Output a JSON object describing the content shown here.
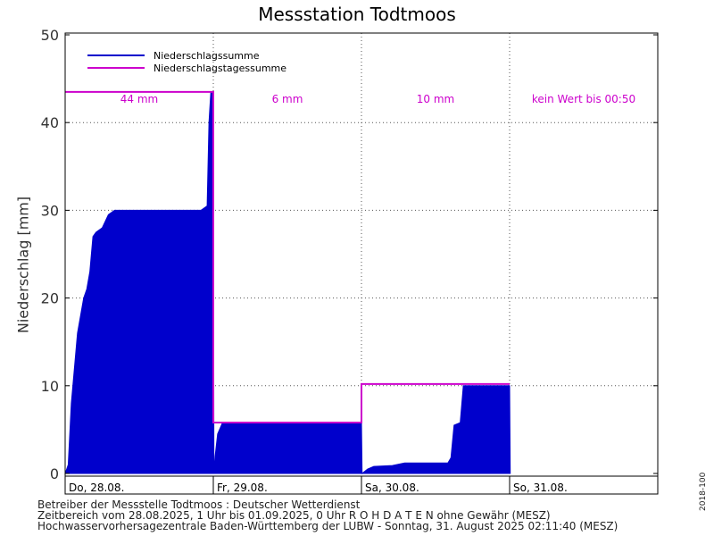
{
  "chart_data": {
    "type": "area",
    "title": "Messstation Todtmoos",
    "ylabel": "Niederschlag [mm]",
    "ylim": [
      0,
      50
    ],
    "yticks": [
      0,
      10,
      20,
      30,
      40,
      50
    ],
    "xlim": [
      0,
      96
    ],
    "x_unit": "hours since 28.08.2025 01:00",
    "grid": true,
    "legend_position": "top-left",
    "day_labels": [
      {
        "x": 0,
        "label": "Do, 28.08."
      },
      {
        "x": 24,
        "label": "Fr, 29.08."
      },
      {
        "x": 48,
        "label": "Sa, 30.08."
      },
      {
        "x": 72,
        "label": "So, 31.08."
      }
    ],
    "series": [
      {
        "name": "Niederschlagssumme",
        "color": "#0000cc",
        "points": [
          [
            0,
            0
          ],
          [
            0.5,
            1
          ],
          [
            1,
            8
          ],
          [
            1.5,
            12
          ],
          [
            2,
            16
          ],
          [
            2.5,
            18
          ],
          [
            3,
            20
          ],
          [
            3.5,
            21
          ],
          [
            4,
            23
          ],
          [
            4.5,
            27
          ],
          [
            5,
            27.5
          ],
          [
            6,
            28
          ],
          [
            7,
            29.5
          ],
          [
            8,
            30
          ],
          [
            10,
            30
          ],
          [
            15,
            30
          ],
          [
            22,
            30
          ],
          [
            23,
            30.5
          ],
          [
            23.3,
            40
          ],
          [
            23.6,
            43.5
          ],
          [
            24,
            43.5
          ],
          [
            24.1,
            0
          ],
          [
            24.3,
            2
          ],
          [
            24.7,
            4.5
          ],
          [
            25.5,
            5.8
          ],
          [
            30,
            5.8
          ],
          [
            40,
            5.8
          ],
          [
            48,
            5.8
          ],
          [
            48.1,
            0
          ],
          [
            49,
            0.5
          ],
          [
            50,
            0.8
          ],
          [
            53,
            0.9
          ],
          [
            55,
            1.2
          ],
          [
            60,
            1.2
          ],
          [
            62,
            1.2
          ],
          [
            62.5,
            1.8
          ],
          [
            63,
            5.5
          ],
          [
            64,
            5.8
          ],
          [
            64.5,
            10
          ],
          [
            68,
            10
          ],
          [
            72,
            10
          ],
          [
            72.1,
            0
          ]
        ]
      },
      {
        "name": "Niederschlagstagessumme",
        "color": "#cc00cc",
        "daily": [
          {
            "start": 0,
            "end": 24,
            "value": 43.5,
            "label": "44 mm"
          },
          {
            "start": 24,
            "end": 48,
            "value": 5.8,
            "label": "6 mm"
          },
          {
            "start": 48,
            "end": 72,
            "value": 10.2,
            "label": "10 mm"
          },
          {
            "start": 72,
            "end": 96,
            "value": null,
            "label": "kein Wert bis 00:50"
          }
        ]
      }
    ]
  },
  "footer": {
    "line1": "Betreiber der Messstelle Todtmoos : Deutscher Wetterdienst",
    "line2": "Zeitbereich vom 28.08.2025, 1 Uhr bis 01.09.2025, 0 Uhr   R O H D A T E N ohne Gewähr (MESZ)",
    "line3": "Hochwasservorhersagezentrale Baden-Württemberg der LUBW -  Sonntag, 31. August 2025 02:11:40 (MESZ)",
    "version": "2018-100"
  }
}
